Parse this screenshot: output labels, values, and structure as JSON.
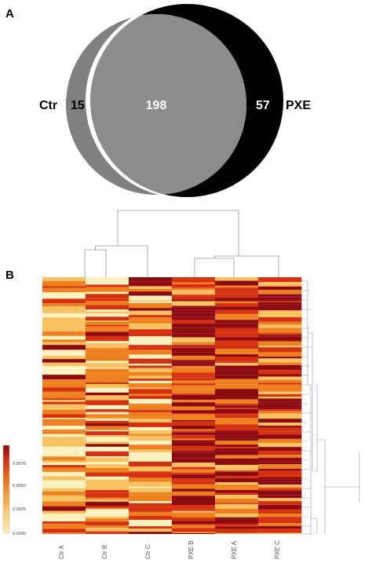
{
  "panels": {
    "a": "A",
    "b": "B"
  },
  "venn": {
    "left_label": "Ctr",
    "right_label": "PXE",
    "left_only": "15",
    "overlap": "198",
    "right_only": "57",
    "colors": {
      "left": "#808080",
      "right": "#000000",
      "overlap": "#8c8c8c"
    }
  },
  "chart_data": {
    "type": "heatmap",
    "columns": [
      "Ctr A",
      "Ctr B",
      "Ctr C",
      "PXE B",
      "PXE A",
      "PXE C"
    ],
    "colorbar": {
      "ticks": [
        "0.0000",
        "0.0025",
        "0.0050",
        "0.0075"
      ],
      "range": [
        0,
        0.009
      ],
      "colors": [
        "#fdf1c0",
        "#f9c160",
        "#ee8020",
        "#d53010",
        "#8c0a10"
      ]
    },
    "column_dendrogram": "clusters Ctr A, Ctr B, Ctr C vs PXE B, PXE A, PXE C",
    "row_dendrogram": true
  }
}
